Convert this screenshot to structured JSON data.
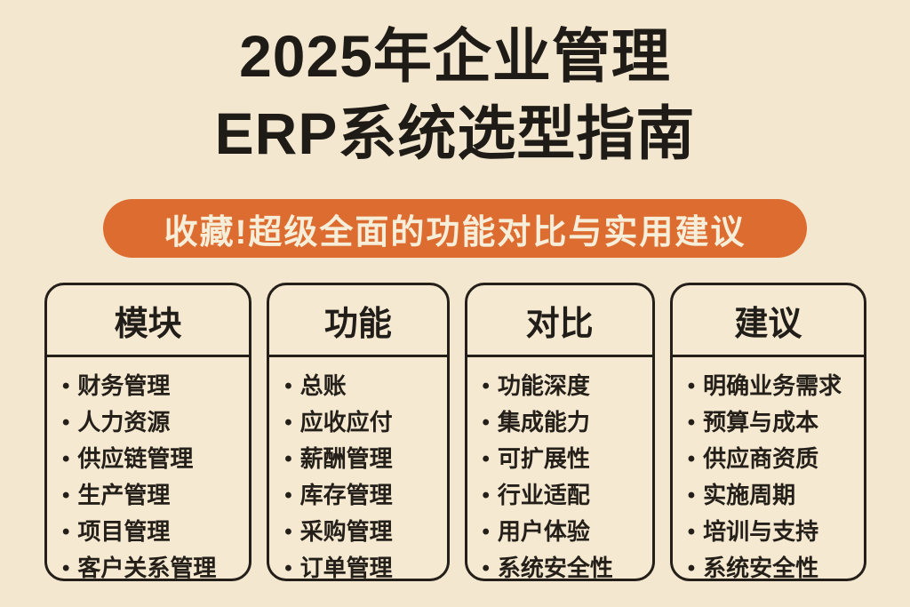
{
  "title": {
    "line1": "2025年企业管理",
    "line2": "ERP系统选型指南"
  },
  "banner": {
    "text": "收藏!超级全面的功能对比与实用建议"
  },
  "columns": [
    {
      "header": "模块",
      "items": [
        "财务管理",
        "人力资源",
        "供应链管理",
        "生产管理",
        "项目管理",
        "客户关系管理"
      ]
    },
    {
      "header": "功能",
      "items": [
        "总账",
        "应收应付",
        "薪酬管理",
        "库存管理",
        "采购管理",
        "订单管理"
      ]
    },
    {
      "header": "对比",
      "items": [
        "功能深度",
        "集成能力",
        "可扩展性",
        "行业适配",
        "用户体验",
        "系统安全性"
      ]
    },
    {
      "header": "建议",
      "items": [
        "明确业务需求",
        "预算与成本",
        "供应商资质",
        "实施周期",
        "培训与支持",
        "系统安全性"
      ]
    }
  ],
  "icons": {
    "bullet": "•"
  },
  "colors": {
    "background": "#f3e7cf",
    "accent_orange": "#dd6c31",
    "text_black": "#211d18",
    "banner_text": "#f6eed8"
  }
}
